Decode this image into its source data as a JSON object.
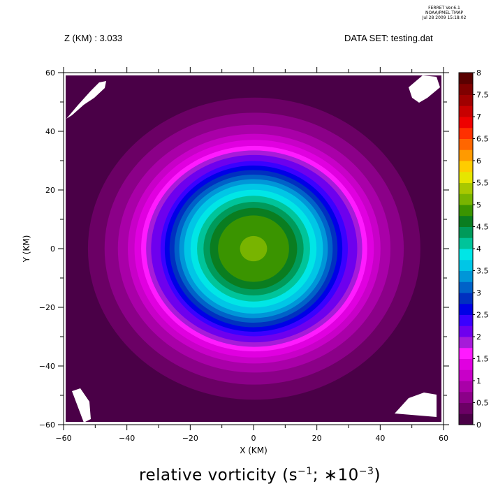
{
  "header": {
    "program_line": "FERRET  Ver.6.1",
    "org_line": "NOAA/PMEL TMAP",
    "date_line": "Jul 28 2009 15:18:02",
    "z_label": "Z (KM) : 3.033",
    "dataset_label": "DATA SET: testing.dat"
  },
  "colorbar": {
    "levels": [
      "0",
      "0.5",
      "1",
      "1.5",
      "2",
      "2.5",
      "3",
      "3.5",
      "4",
      "4.5",
      "5",
      "5.5",
      "6",
      "6.5",
      "7",
      "7.5",
      "8"
    ],
    "colors": [
      "#4a0047",
      "#6b0065",
      "#8b0088",
      "#a900a8",
      "#c800c8",
      "#e000e0",
      "#ff1aff",
      "#a61bd9",
      "#6e00ee",
      "#3a00ff",
      "#0000e6",
      "#0030c0",
      "#0062c8",
      "#0096d8",
      "#00c6e6",
      "#00e6e6",
      "#00c49a",
      "#009a5a",
      "#0a7d20",
      "#3a9400",
      "#78b400",
      "#a8c800",
      "#e6e600",
      "#ffcc00",
      "#ff9a00",
      "#ff6600",
      "#ff3000",
      "#ee0000",
      "#c80000",
      "#a00000",
      "#800000",
      "#5a0000"
    ]
  },
  "chart_data": {
    "type": "heatmap",
    "subtype": "filled-contour",
    "title": "relative vorticity (s^-1; *10^-3)",
    "title_main": "relative vorticity (s",
    "title_sup1": "−1",
    "title_mid": "; ∗10",
    "title_sup2": "−3",
    "title_end": ")",
    "xlabel": "X (KM)",
    "ylabel": "Y (KM)",
    "xlim": [
      -60,
      60
    ],
    "ylim": [
      -60,
      60
    ],
    "xticks": [
      "−60",
      "−40",
      "−20",
      "0",
      "20",
      "40",
      "60"
    ],
    "yticks": [
      "60",
      "40",
      "20",
      "0",
      "−20",
      "−40",
      "−60"
    ],
    "contour_interval": 0.25,
    "center": [
      0,
      0
    ],
    "peak_value": 5.3,
    "background_value": 0.1,
    "field_description": "single positive vortex centered near origin, values decreasing radially"
  }
}
